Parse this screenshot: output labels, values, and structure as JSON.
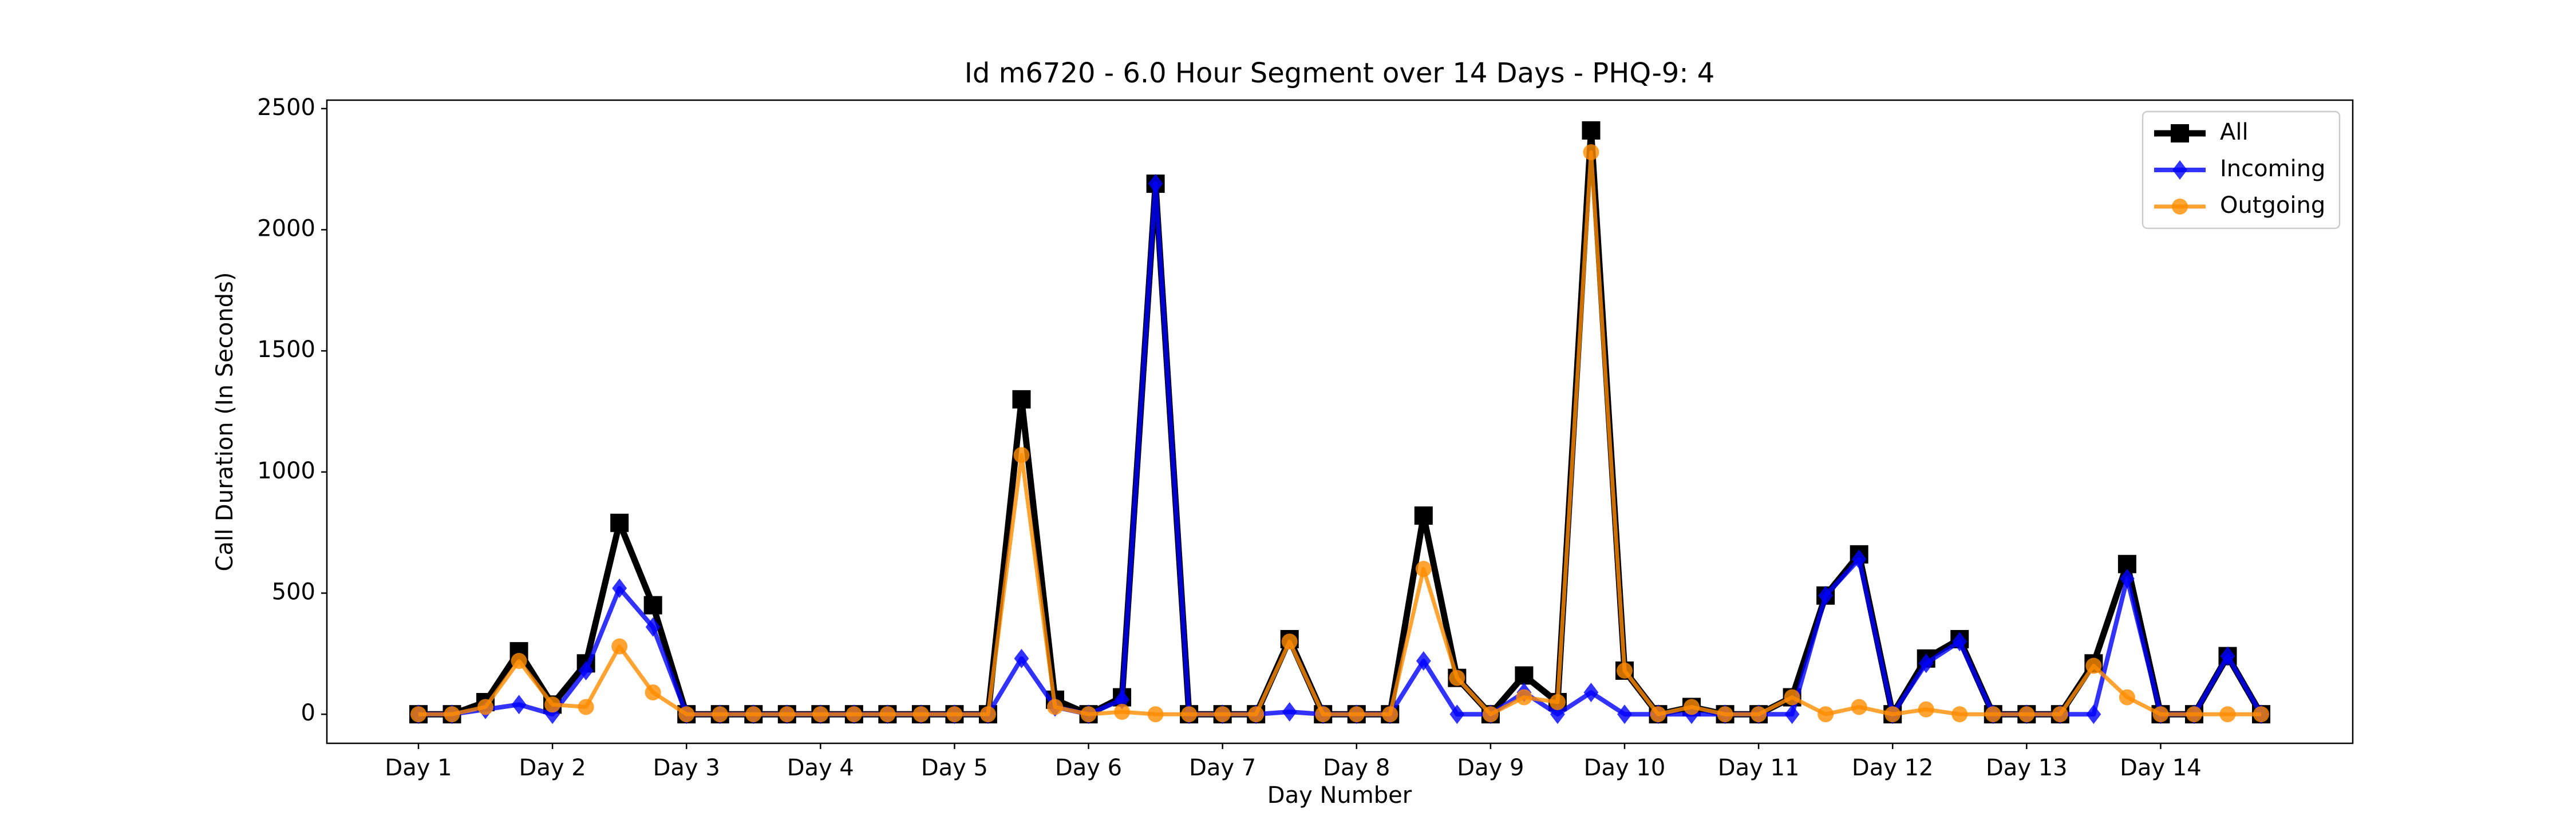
{
  "chart_data": {
    "type": "line",
    "title": "Id m6720 - 6.0 Hour Segment over 14 Days - PHQ-9: 4",
    "x_label": "Day Number",
    "y_label": "Call Duration (In Seconds)",
    "categories": [
      "Day 1",
      null,
      null,
      null,
      "Day 2",
      null,
      null,
      null,
      "Day 3",
      null,
      null,
      null,
      "Day 4",
      null,
      null,
      null,
      "Day 5",
      null,
      null,
      null,
      "Day 6",
      null,
      null,
      null,
      "Day 7",
      null,
      null,
      null,
      "Day 8",
      null,
      null,
      null,
      "Day 9",
      null,
      null,
      null,
      "Day 10",
      null,
      null,
      null,
      "Day 11",
      null,
      null,
      null,
      "Day 12",
      null,
      null,
      null,
      "Day 13",
      null,
      null,
      null,
      "Day 14",
      null,
      null,
      null
    ],
    "series": [
      {
        "name": "All",
        "color": "#000000",
        "marker": "square",
        "values": [
          0,
          0,
          50,
          260,
          40,
          210,
          790,
          450,
          0,
          0,
          0,
          0,
          0,
          0,
          0,
          0,
          0,
          0,
          1300,
          60,
          0,
          70,
          2190,
          0,
          0,
          0,
          310,
          0,
          0,
          0,
          820,
          150,
          0,
          160,
          50,
          2410,
          180,
          0,
          30,
          0,
          0,
          70,
          490,
          660,
          0,
          230,
          310,
          0,
          0,
          0,
          210,
          620,
          0,
          0,
          240,
          0
        ]
      },
      {
        "name": "Incoming",
        "color": "#0000ff",
        "marker": "diamond",
        "values": [
          0,
          0,
          20,
          40,
          0,
          180,
          520,
          360,
          0,
          0,
          0,
          0,
          0,
          0,
          0,
          0,
          0,
          0,
          230,
          30,
          0,
          60,
          2190,
          0,
          0,
          0,
          10,
          0,
          0,
          0,
          220,
          0,
          0,
          90,
          0,
          90,
          0,
          0,
          0,
          0,
          0,
          0,
          490,
          640,
          0,
          210,
          300,
          0,
          0,
          0,
          0,
          560,
          0,
          0,
          240,
          0
        ]
      },
      {
        "name": "Outgoing",
        "color": "#ff8c00",
        "marker": "circle",
        "values": [
          0,
          0,
          30,
          220,
          40,
          30,
          280,
          90,
          0,
          0,
          0,
          0,
          0,
          0,
          0,
          0,
          0,
          0,
          1070,
          30,
          0,
          10,
          0,
          0,
          0,
          0,
          300,
          0,
          0,
          0,
          600,
          150,
          0,
          70,
          50,
          2320,
          180,
          0,
          30,
          0,
          0,
          70,
          0,
          30,
          0,
          20,
          0,
          0,
          0,
          0,
          200,
          70,
          0,
          0,
          0,
          0
        ]
      }
    ],
    "ylim": [
      -120,
      2535
    ],
    "yticks": [
      0,
      500,
      1000,
      1500,
      2000,
      2500
    ],
    "legend": "upper right"
  }
}
